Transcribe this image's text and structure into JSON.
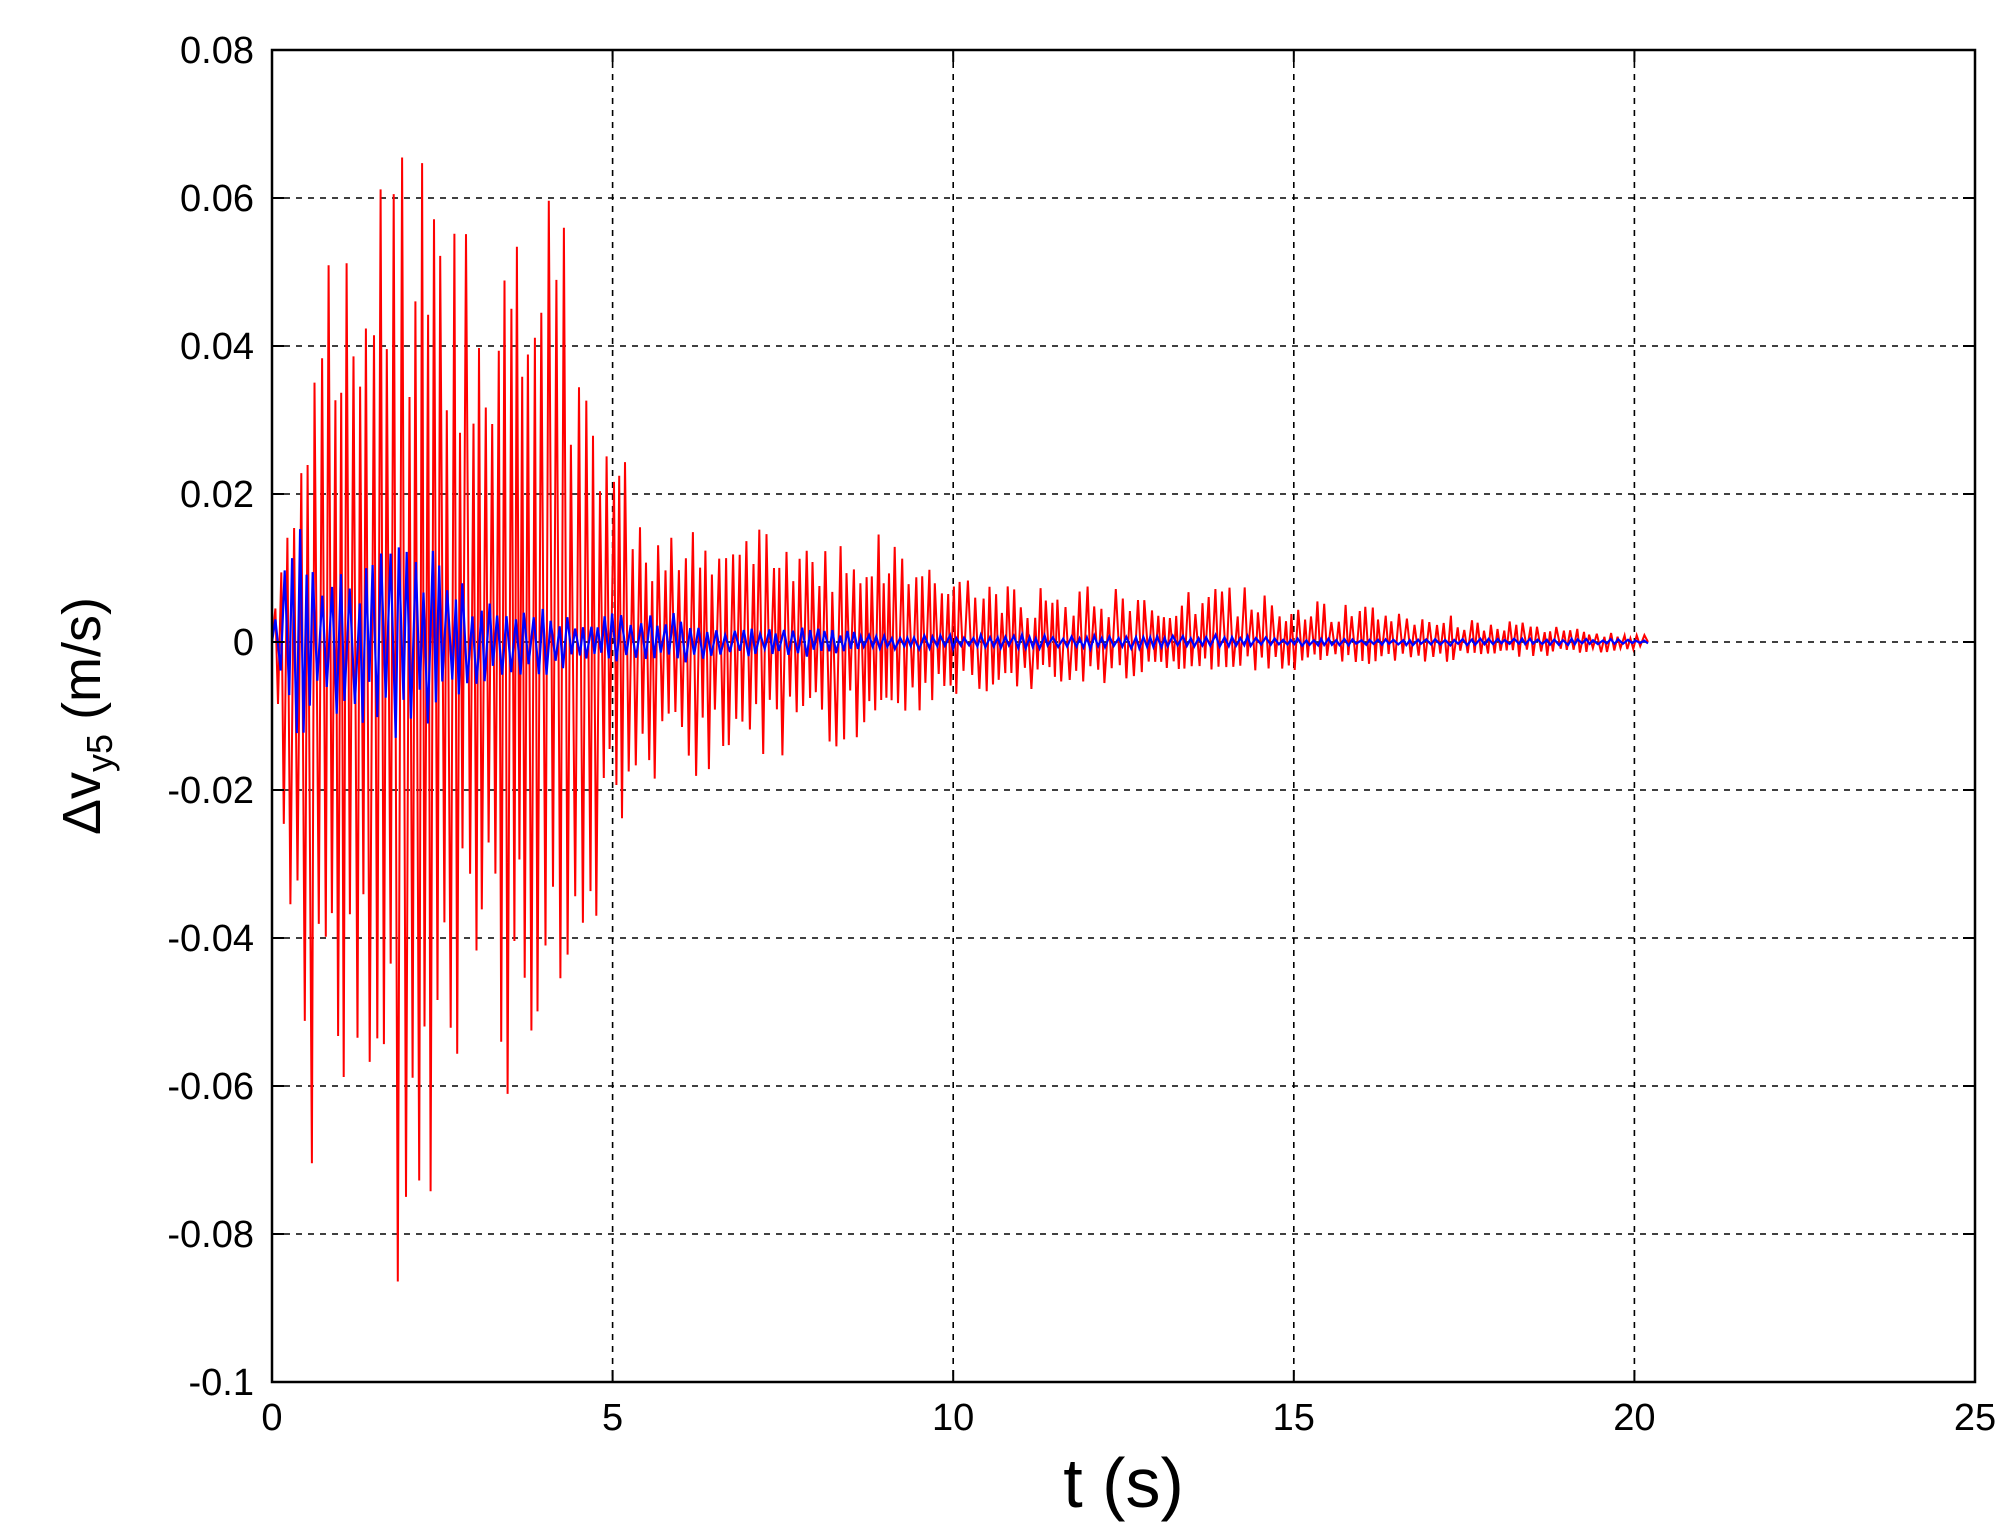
{
  "chart_data": {
    "type": "line",
    "title": "",
    "xlabel": "t (s)",
    "ylabel": {
      "main": "Δv",
      "subscript": "y5",
      "unit": "(m/s)"
    },
    "xlim": [
      0,
      25
    ],
    "ylim": [
      -0.1,
      0.08
    ],
    "xticks": [
      0,
      5,
      10,
      15,
      20,
      25
    ],
    "yticks": [
      0.08,
      0.06,
      0.04,
      0.02,
      0,
      -0.02,
      -0.04,
      -0.06,
      -0.08,
      -0.1
    ],
    "xtick_labels": [
      "0",
      "5",
      "10",
      "15",
      "20",
      "25"
    ],
    "ytick_labels": [
      "0.08",
      "0.06",
      "0.04",
      "0.02",
      "0",
      "-0.02",
      "-0.04",
      "-0.06",
      "-0.08",
      "-0.1"
    ],
    "grid": true,
    "legend": false,
    "series": [
      {
        "color": "#ff0000",
        "envelope": {
          "t": [
            0,
            0.2,
            0.5,
            1,
            1.5,
            2,
            2.5,
            3,
            3.5,
            4,
            4.5,
            5,
            5.5,
            6,
            6.5,
            7,
            8,
            9,
            10,
            11,
            12,
            13,
            14,
            15,
            16,
            17,
            18,
            19,
            20,
            20.2
          ],
          "max": [
            0.002,
            0.018,
            0.05,
            0.052,
            0.066,
            0.072,
            0.058,
            0.062,
            0.056,
            0.062,
            0.052,
            0.03,
            0.018,
            0.016,
            0.014,
            0.016,
            0.015,
            0.015,
            0.01,
            0.007,
            0.008,
            0.006,
            0.008,
            0.006,
            0.005,
            0.004,
            0.003,
            0.002,
            0.001,
            0.001
          ],
          "min": [
            -0.002,
            -0.03,
            -0.074,
            -0.06,
            -0.072,
            -0.095,
            -0.064,
            -0.058,
            -0.064,
            -0.05,
            -0.045,
            -0.03,
            -0.022,
            -0.02,
            -0.017,
            -0.016,
            -0.015,
            -0.012,
            -0.008,
            -0.007,
            -0.006,
            -0.005,
            -0.004,
            -0.004,
            -0.003,
            -0.003,
            -0.002,
            -0.002,
            -0.001,
            0
          ]
        },
        "period_s": 0.1
      },
      {
        "color": "#0000ff",
        "envelope": {
          "t": [
            0,
            0.3,
            0.5,
            1,
            1.5,
            2,
            2.5,
            3,
            3.5,
            4,
            4.5,
            5,
            5.5,
            6,
            6.5,
            7,
            8,
            9,
            10,
            11,
            12,
            13,
            14,
            15,
            16,
            17,
            18,
            19,
            20,
            20.2
          ],
          "max": [
            0.002,
            0.015,
            0.016,
            0.01,
            0.012,
            0.016,
            0.013,
            0.006,
            0.006,
            0.006,
            0.003,
            0.004,
            0.004,
            0.005,
            0.002,
            0.002,
            0.002,
            0.001,
            0.001,
            0.001,
            0.001,
            0.001,
            0.001,
            0.0005,
            0.0005,
            0.0005,
            0.0005,
            0.0005,
            0.0004,
            0.0002
          ],
          "min": [
            -0.002,
            -0.017,
            -0.012,
            -0.01,
            -0.012,
            -0.014,
            -0.011,
            -0.006,
            -0.005,
            -0.005,
            -0.003,
            -0.003,
            -0.003,
            -0.003,
            -0.002,
            -0.002,
            -0.002,
            -0.001,
            -0.001,
            -0.001,
            -0.001,
            -0.0008,
            -0.0008,
            -0.0005,
            -0.0005,
            -0.0005,
            -0.0004,
            -0.0004,
            -0.0003,
            -0.0002
          ]
        },
        "period_s": 0.12
      }
    ]
  }
}
